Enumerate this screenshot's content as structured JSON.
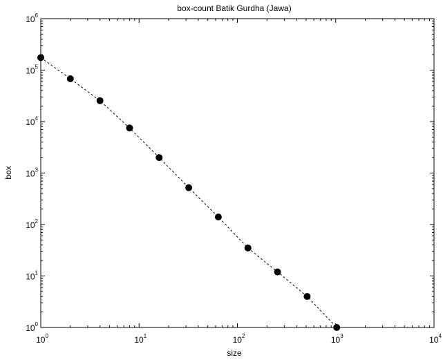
{
  "chart_data": {
    "type": "scatter",
    "title": "box-count Batik Gurdha (Jawa)",
    "xlabel": "size",
    "ylabel": "box",
    "xscale": "log",
    "yscale": "log",
    "xlim": [
      1,
      10000
    ],
    "ylim": [
      1,
      1000000
    ],
    "grid": false,
    "line_style": "dashed",
    "marker": "filled-circle",
    "marker_color": "#000000",
    "line_color": "#000000",
    "x_ticks": [
      {
        "base": "10",
        "exp": "0"
      },
      {
        "base": "10",
        "exp": "1"
      },
      {
        "base": "10",
        "exp": "2"
      },
      {
        "base": "10",
        "exp": "3"
      },
      {
        "base": "10",
        "exp": "4"
      }
    ],
    "y_ticks": [
      {
        "base": "10",
        "exp": "0"
      },
      {
        "base": "10",
        "exp": "1"
      },
      {
        "base": "10",
        "exp": "2"
      },
      {
        "base": "10",
        "exp": "3"
      },
      {
        "base": "10",
        "exp": "4"
      },
      {
        "base": "10",
        "exp": "5"
      },
      {
        "base": "10",
        "exp": "6"
      }
    ],
    "series": [
      {
        "x": [
          1,
          2,
          4,
          8,
          16,
          32,
          64,
          128,
          256,
          512,
          1024
        ],
        "y": [
          175000,
          68000,
          25500,
          7500,
          2000,
          520,
          140,
          35,
          12,
          4,
          1
        ]
      }
    ]
  }
}
